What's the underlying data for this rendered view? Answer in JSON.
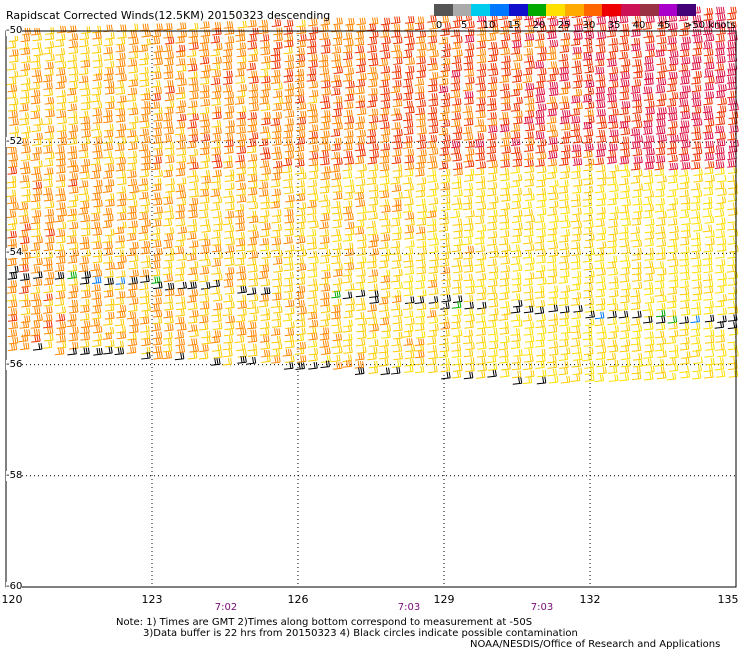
{
  "title": "Rapidscat Corrected Winds(12.5KM) 20150323 descending",
  "legend": {
    "ticks": [
      "0",
      "5",
      "10",
      "15",
      "20",
      "25",
      "30",
      "35",
      "40",
      "45"
    ],
    "units": ">50 knots",
    "colors": [
      "#555555",
      "#aaaaaa",
      "#00ccee",
      "#0077ff",
      "#1010cc",
      "#00aa00",
      "#ffe000",
      "#ffaa00",
      "#ff6600",
      "#ee0000",
      "#cc1155",
      "#993344",
      "#aa00cc",
      "#440077"
    ]
  },
  "lat_labels": [
    "-50",
    "-52",
    "-54",
    "-56",
    "-58",
    "-60"
  ],
  "lon_labels": [
    "120",
    "123",
    "126",
    "129",
    "132",
    "135"
  ],
  "time_labels": [
    "7:02",
    "7:03",
    "7:03"
  ],
  "notes": {
    "line1": "Note: 1) Times are GMT 2)Times along bottom correspond to measurement at -50S",
    "line2": "3)Data buffer is 22 hrs from 20150323 4) Black circles indicate possible contamination",
    "line3": "NOAA/NESDIS/Office of Research and Applications"
  },
  "chart_data": {
    "type": "wind-barb-map",
    "title": "Rapidscat Corrected Winds(12.5KM) 20150323 descending",
    "xlabel": "",
    "ylabel": "",
    "xlim": [
      120,
      135
    ],
    "ylim": [
      -60,
      -50
    ],
    "x_ticks": [
      120,
      123,
      126,
      129,
      132,
      135
    ],
    "y_ticks": [
      -50,
      -52,
      -54,
      -56,
      -58,
      -60
    ],
    "grid": true,
    "legend": "top-right",
    "units": "knots",
    "speed_bins": [
      0,
      5,
      10,
      15,
      20,
      25,
      30,
      35,
      40,
      45,
      50
    ],
    "swath": {
      "west_edge_south_lat": -55.8,
      "east_edge_south_lat": -56.6,
      "contamination_boundary_west_lat": -54.4,
      "contamination_boundary_east_lat": -55.3
    },
    "speed_regions": [
      {
        "region": "northwest",
        "speed_knots": 25
      },
      {
        "region": "north-central",
        "speed_knots": 30
      },
      {
        "region": "northeast",
        "speed_knots": 35
      },
      {
        "region": "central",
        "speed_knots": 22
      },
      {
        "region": "southeast",
        "speed_knots": 18
      },
      {
        "region": "south-edge",
        "speed_knots": 20
      }
    ]
  }
}
